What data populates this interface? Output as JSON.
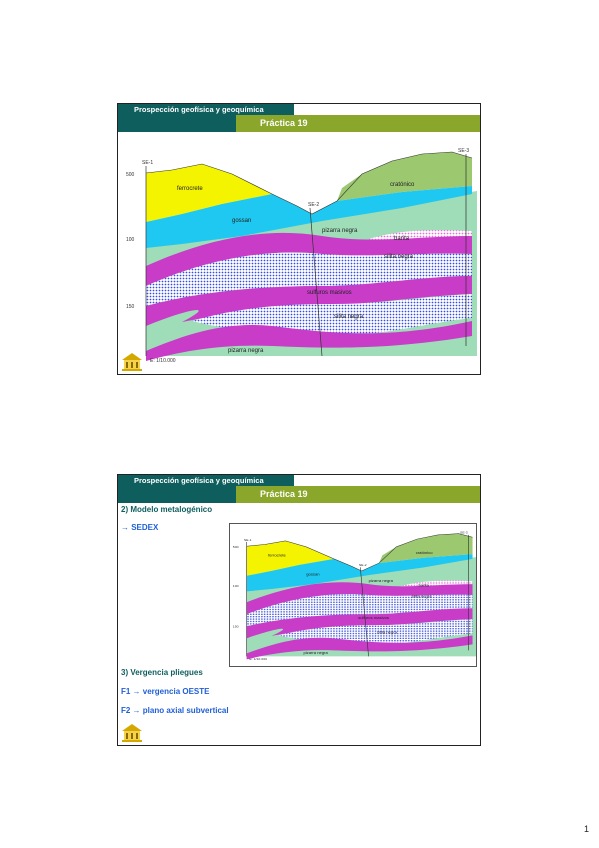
{
  "page_number": "1",
  "slides": [
    {
      "course": "Prospección geofísica y geoquímica",
      "title": "Práctica 19",
      "labels": {
        "s1": "SE-1",
        "s2": "SE-2",
        "s3": "SE-3",
        "ferrocrete": "ferrocrete",
        "gossan": "gossan",
        "cratonico": "cratónico",
        "pizarra_negra": "pizarra negra",
        "barita": "barita",
        "silita_negra": "silita negra",
        "sulfuros": "sulfuros masivos",
        "silita_negra_2": "silita negra",
        "pizarra_negra_2": "pizarra negra",
        "scale": "E: 1/10.000",
        "y500": "500",
        "y100": "100",
        "y150": "150"
      }
    },
    {
      "course": "Prospección geofísica y geoquímica",
      "title": "Práctica 19",
      "heading1": "2) Modelo metalogénico",
      "item1": "→ SEDEX",
      "heading2": "3) Vergencia pliegues",
      "item2": "F1 → vergencia OESTE",
      "item3": "F2 → plano axial subvertical",
      "labels": {
        "s1": "SE-1",
        "s2": "SE-2",
        "s3": "SE-3",
        "ferrocrete": "ferrocrete",
        "gossan": "gossan",
        "cratonico": "cratónico",
        "pizarra_negra": "pizarra negra",
        "barita": "barita",
        "silita_negra": "silita negra",
        "sulfuros": "sulfuros masivos",
        "silita_negra_2": "silita negra",
        "pizarra_negra_2": "pizarra negra",
        "scale": "E: 1/10.000",
        "y500": "500",
        "y100": "100",
        "y150": "150"
      }
    }
  ],
  "colors": {
    "teal": "#0f5e5e",
    "green": "#8aa62b",
    "yellow": "#f4f400",
    "cyan": "#1ec8f0",
    "mint": "#9fdcb8",
    "magenta": "#c83cc8",
    "blue_dots": "#3a4fd8",
    "pink_dots": "#f0a0e8",
    "olive": "#9cc870"
  }
}
